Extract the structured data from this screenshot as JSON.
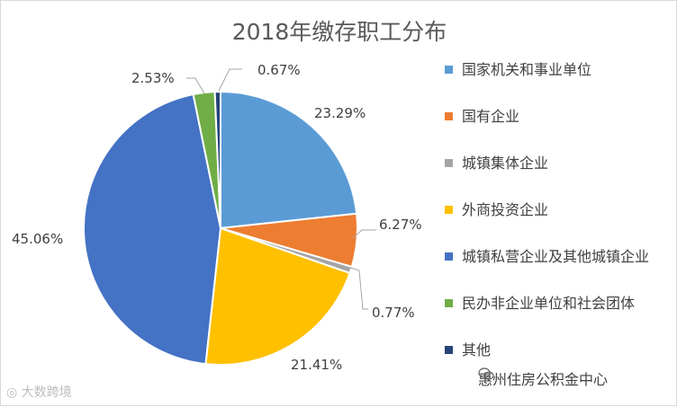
{
  "chart_data": {
    "type": "pie",
    "title": "2018年缴存职工分布",
    "categories": [
      "国家机关和事业单位",
      "国有企业",
      "城镇集体企业",
      "外商投资企业",
      "城镇私营企业及其他城镇企业",
      "民办非企业单位和社会团体",
      "其他"
    ],
    "values": [
      23.29,
      6.27,
      0.77,
      21.41,
      45.06,
      2.53,
      0.67
    ],
    "labels": [
      "23.29%",
      "6.27%",
      "0.77%",
      "21.41%",
      "45.06%",
      "2.53%",
      "0.67%"
    ],
    "colors": [
      "#5b9bd5",
      "#ed7d31",
      "#a5a5a5",
      "#ffc000",
      "#4472c4",
      "#70ad47",
      "#264478"
    ],
    "legend_position": "right"
  },
  "watermarks": {
    "left": "大数跨境",
    "right": "惠州住房公积金中心"
  }
}
